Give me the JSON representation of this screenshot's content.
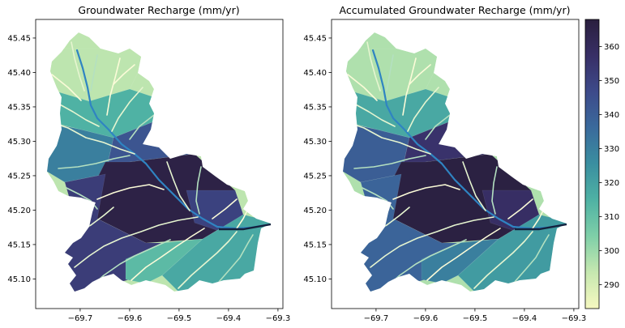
{
  "chart_data": [
    {
      "type": "map",
      "title": "Groundwater Recharge (mm/yr)",
      "xlim": [
        -69.79,
        -69.29
      ],
      "ylim": [
        45.057,
        45.477
      ],
      "xticks": [
        {
          "value": -69.7,
          "label": "−69.7"
        },
        {
          "value": -69.6,
          "label": "−69.6"
        },
        {
          "value": -69.5,
          "label": "−69.5"
        },
        {
          "value": -69.4,
          "label": "−69.4"
        },
        {
          "value": -69.3,
          "label": "−69.3"
        }
      ],
      "yticks": [
        {
          "value": 45.1,
          "label": "45.10"
        },
        {
          "value": 45.15,
          "label": "45.15"
        },
        {
          "value": 45.2,
          "label": "45.20"
        },
        {
          "value": 45.25,
          "label": "45.25"
        },
        {
          "value": 45.3,
          "label": "45.30"
        },
        {
          "value": 45.35,
          "label": "45.35"
        },
        {
          "value": 45.4,
          "label": "45.40"
        },
        {
          "value": 45.45,
          "label": "45.45"
        }
      ],
      "zones": [
        {
          "recharge": 295
        },
        {
          "recharge": 315
        },
        {
          "recharge": 330
        },
        {
          "recharge": 343
        },
        {
          "recharge": 366
        },
        {
          "recharge": 352
        },
        {
          "recharge": 350
        },
        {
          "recharge": 318
        },
        {
          "recharge": 312
        }
      ]
    },
    {
      "type": "map",
      "title": "Accumulated Groundwater Recharge (mm/yr)",
      "xlim": [
        -69.79,
        -69.29
      ],
      "ylim": [
        45.057,
        45.477
      ],
      "xticks": [
        {
          "value": -69.7,
          "label": "−69.7"
        },
        {
          "value": -69.6,
          "label": "−69.6"
        },
        {
          "value": -69.5,
          "label": "−69.5"
        },
        {
          "value": -69.4,
          "label": "−69.4"
        },
        {
          "value": -69.3,
          "label": "−69.3"
        }
      ],
      "yticks": [
        {
          "value": 45.1,
          "label": "45.10"
        },
        {
          "value": 45.15,
          "label": "45.15"
        },
        {
          "value": 45.2,
          "label": "45.20"
        },
        {
          "value": 45.25,
          "label": "45.25"
        },
        {
          "value": 45.3,
          "label": "45.30"
        },
        {
          "value": 45.35,
          "label": "45.35"
        },
        {
          "value": 45.4,
          "label": "45.40"
        },
        {
          "value": 45.45,
          "label": "45.45"
        }
      ],
      "zones": [
        {
          "recharge": 297
        },
        {
          "recharge": 318
        },
        {
          "recharge": 340
        },
        {
          "recharge": 356
        },
        {
          "recharge": 367
        },
        {
          "recharge": 338
        },
        {
          "recharge": 358
        },
        {
          "recharge": 322
        },
        {
          "recharge": 330
        }
      ]
    }
  ],
  "colorbar": {
    "vmin": 283,
    "vmax": 368,
    "ticks": [
      {
        "value": 290,
        "label": "290"
      },
      {
        "value": 300,
        "label": "300"
      },
      {
        "value": 310,
        "label": "310"
      },
      {
        "value": 320,
        "label": "320"
      },
      {
        "value": 330,
        "label": "330"
      },
      {
        "value": 340,
        "label": "340"
      },
      {
        "value": 350,
        "label": "350"
      },
      {
        "value": 360,
        "label": "360"
      }
    ],
    "colors": [
      "#f6f8c0",
      "#c6e8b0",
      "#7fcfa8",
      "#4fb2a4",
      "#3a8fa0",
      "#3a6a9c",
      "#3d4a8a",
      "#382f66",
      "#2a1f3e"
    ]
  }
}
